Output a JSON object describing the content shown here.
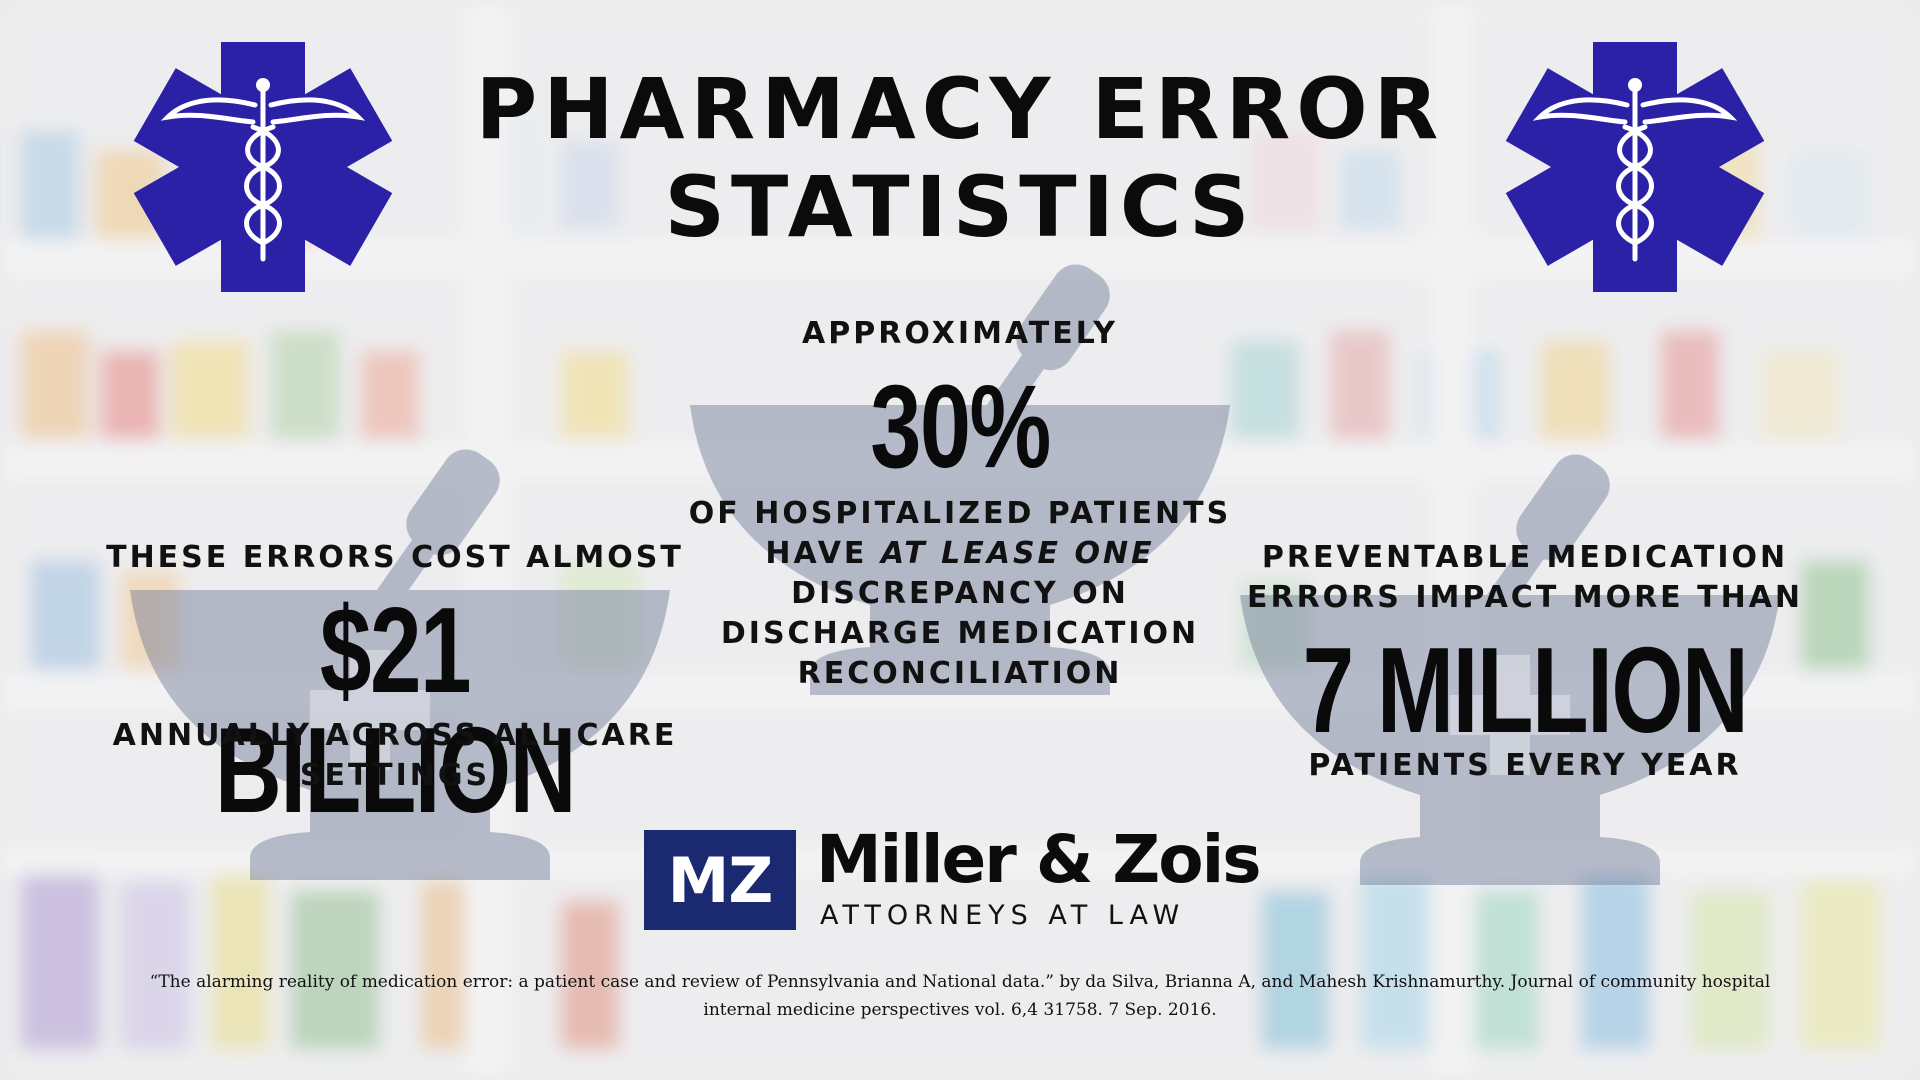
{
  "title": {
    "line1": "PHARMACY ERROR",
    "line2": "STATISTICS"
  },
  "center": {
    "lead": "APPROXIMATELY",
    "figure": "30%",
    "line1": "OF HOSPITALIZED PATIENTS",
    "line2_prefix": "HAVE ",
    "line2_emphasis": "AT LEASE ONE",
    "line3": "DISCREPANCY ON",
    "line4": "DISCHARGE MEDICATION",
    "line5": "RECONCILIATION"
  },
  "left": {
    "lead": "THESE ERRORS COST ALMOST",
    "figure": "$21 BILLION",
    "line1": "ANNUALLY ACROSS ALL CARE",
    "line2": "SETTINGS"
  },
  "right": {
    "lead1": "PREVENTABLE MEDICATION",
    "lead2": "ERRORS IMPACT MORE THAN",
    "figure": "7 MILLION",
    "line1": "PATIENTS EVERY YEAR"
  },
  "logo": {
    "monogram": "MZ",
    "name": "Miller & Zois",
    "tagline": "ATTORNEYS AT LAW"
  },
  "citation": {
    "line1": "“The alarming reality of medication error: a patient case and review of Pennsylvania and National data.” by da Silva, Brianna A, and Mahesh Krishnamurthy. Journal of community hospital",
    "line2": "internal medicine perspectives vol. 6,4 31758. 7 Sep. 2016."
  },
  "icons": {
    "emblem": "star-of-life-caduceus-icon",
    "watermark": "mortar-and-pestle-icon",
    "background": "pharmacy-shelves-background"
  },
  "colors": {
    "emblem_blue": "#2a21a6",
    "logo_navy": "#1b2a70",
    "watermark": "#6d7896",
    "text": "#111111"
  }
}
